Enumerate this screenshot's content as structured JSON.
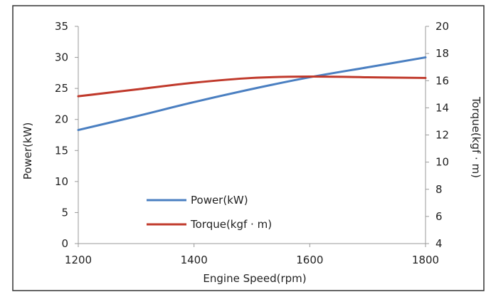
{
  "chart_data": {
    "type": "line",
    "x": [
      1200,
      1300,
      1400,
      1500,
      1600,
      1700,
      1800
    ],
    "xlabel": "Engine Speed(rpm)",
    "xlim": [
      1200,
      1800
    ],
    "xticks": [
      1200,
      1400,
      1600,
      1800
    ],
    "y_left": {
      "label": "Power(kW)",
      "lim": [
        0,
        35
      ],
      "ticks": [
        0,
        5,
        10,
        15,
        20,
        25,
        30,
        35
      ]
    },
    "y_right": {
      "label": "Torque(kgf · m)",
      "lim": [
        4,
        20
      ],
      "ticks": [
        4,
        6,
        8,
        10,
        12,
        14,
        16,
        18,
        20
      ]
    },
    "series": [
      {
        "name": "Power(kW)",
        "axis": "left",
        "color": "#4a7fc1",
        "values": [
          18.3,
          20.5,
          22.8,
          24.9,
          26.8,
          28.4,
          30.0
        ]
      },
      {
        "name": "Torque(kgf · m)",
        "axis": "right",
        "color": "#c0392b",
        "values": [
          14.85,
          15.35,
          15.85,
          16.2,
          16.3,
          16.25,
          16.2
        ]
      }
    ],
    "legend_position": "lower-left inside",
    "grid": false
  }
}
